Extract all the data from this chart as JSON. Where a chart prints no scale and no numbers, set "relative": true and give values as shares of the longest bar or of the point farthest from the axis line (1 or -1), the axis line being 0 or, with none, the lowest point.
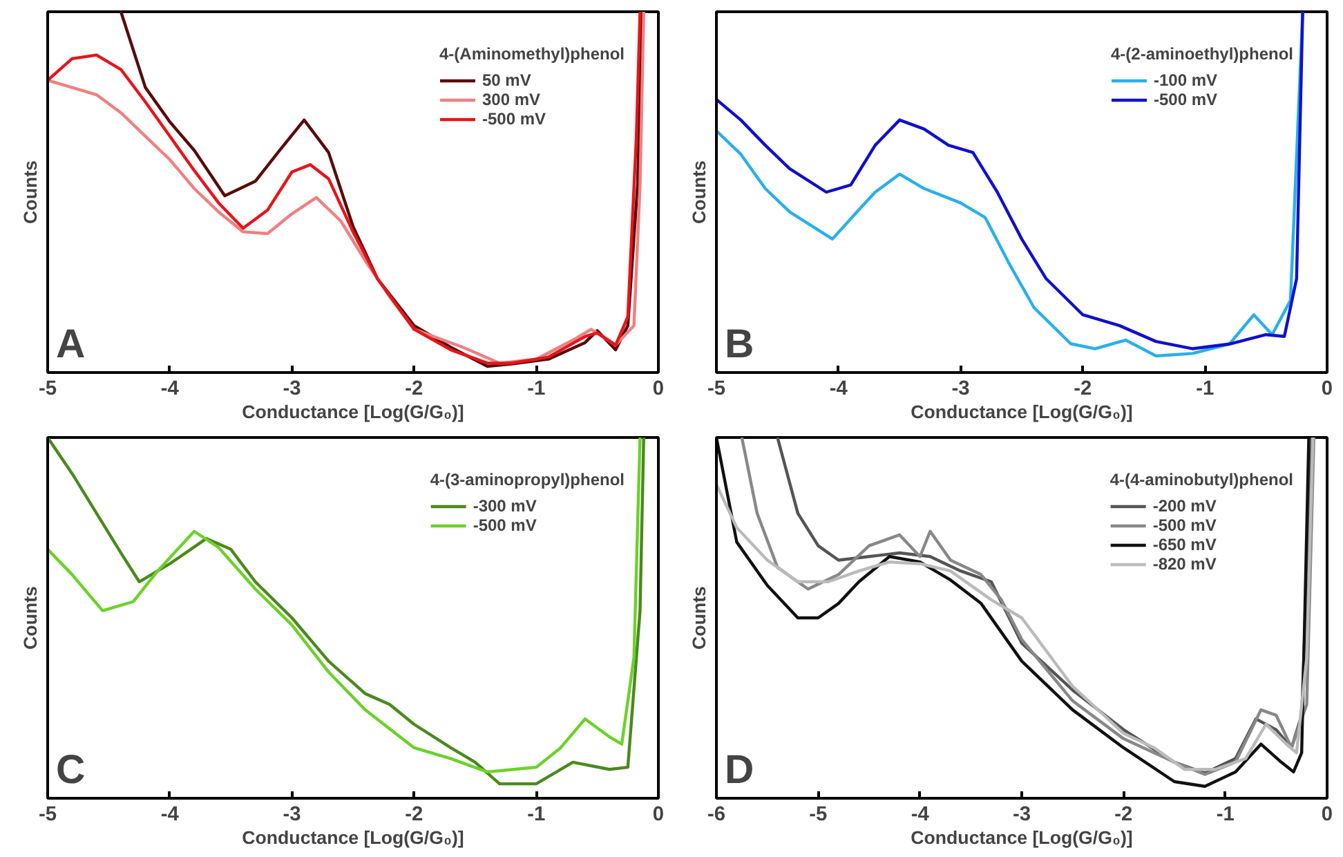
{
  "chart_data": [
    {
      "type": "line",
      "relative": true,
      "xlabel": "Conductance [Log(G/G₀)]",
      "ylabel": "Counts",
      "legend_title": "4-(Aminomethyl)phenol",
      "legend": "top right",
      "grid": false,
      "tick_labels": "x",
      "annotations": [
        "A"
      ],
      "xlim": [
        -5,
        0
      ],
      "xticks": [
        -5,
        -4,
        -3,
        -2,
        -1,
        0
      ],
      "series": [
        {
          "name": "50 mV",
          "color": "#5a0a0a",
          "x": [
            -4.4,
            -4.2,
            -4.0,
            -3.8,
            -3.55,
            -3.3,
            -3.1,
            -2.9,
            -2.7,
            -2.5,
            -2.3,
            -2.0,
            -1.7,
            -1.4,
            -1.2,
            -0.9,
            -0.6,
            -0.5,
            -0.35,
            -0.25,
            -0.17,
            -0.13
          ],
          "values": [
            1.0,
            0.79,
            0.695,
            0.616,
            0.49,
            0.53,
            0.616,
            0.7,
            0.61,
            0.405,
            0.26,
            0.13,
            0.07,
            0.017,
            0.024,
            0.037,
            0.083,
            0.116,
            0.063,
            0.13,
            0.52,
            1.0
          ]
        },
        {
          "name": "300 mV",
          "color": "#f08080",
          "x": [
            -5.0,
            -4.8,
            -4.6,
            -4.4,
            -4.2,
            -4.0,
            -3.8,
            -3.6,
            -3.4,
            -3.2,
            -3.0,
            -2.8,
            -2.6,
            -2.4,
            -2.2,
            -2.0,
            -1.6,
            -1.3,
            -1.0,
            -0.7,
            -0.55,
            -0.35,
            -0.2,
            -0.15,
            -0.12
          ],
          "values": [
            0.81,
            0.79,
            0.77,
            0.72,
            0.655,
            0.59,
            0.51,
            0.445,
            0.39,
            0.385,
            0.44,
            0.485,
            0.42,
            0.31,
            0.21,
            0.12,
            0.07,
            0.026,
            0.037,
            0.09,
            0.12,
            0.076,
            0.13,
            0.52,
            1.0
          ]
        },
        {
          "name": "-500 mV",
          "color": "#e8141a",
          "x": [
            -5.0,
            -4.8,
            -4.6,
            -4.4,
            -4.2,
            -4.0,
            -3.8,
            -3.6,
            -3.4,
            -3.2,
            -3.0,
            -2.85,
            -2.7,
            -2.5,
            -2.3,
            -2.0,
            -1.7,
            -1.4,
            -1.2,
            -0.9,
            -0.6,
            -0.5,
            -0.35,
            -0.25,
            -0.18,
            -0.15
          ],
          "values": [
            0.81,
            0.87,
            0.88,
            0.84,
            0.75,
            0.655,
            0.56,
            0.47,
            0.4,
            0.45,
            0.556,
            0.576,
            0.537,
            0.39,
            0.26,
            0.12,
            0.063,
            0.026,
            0.026,
            0.043,
            0.1,
            0.11,
            0.076,
            0.155,
            0.655,
            1.0
          ]
        }
      ]
    },
    {
      "type": "line",
      "relative": true,
      "xlabel": "Conductance [Log(G/G₀)]",
      "ylabel": "Counts",
      "legend_title": "4-(2-aminoethyl)phenol",
      "legend": "top right",
      "grid": false,
      "tick_labels": "x",
      "annotations": [
        "B"
      ],
      "xlim": [
        -5,
        0
      ],
      "xticks": [
        -5,
        -4,
        -3,
        -2,
        -1,
        0
      ],
      "series": [
        {
          "name": "-100 mV",
          "color": "#29b0ea",
          "x": [
            -5.0,
            -4.8,
            -4.6,
            -4.4,
            -4.05,
            -3.85,
            -3.7,
            -3.5,
            -3.3,
            -3.0,
            -2.8,
            -2.6,
            -2.4,
            -2.1,
            -1.9,
            -1.65,
            -1.4,
            -1.1,
            -0.8,
            -0.6,
            -0.45,
            -0.3,
            -0.2
          ],
          "values": [
            0.67,
            0.605,
            0.51,
            0.445,
            0.37,
            0.445,
            0.5,
            0.55,
            0.51,
            0.47,
            0.43,
            0.3,
            0.18,
            0.08,
            0.066,
            0.09,
            0.046,
            0.053,
            0.079,
            0.16,
            0.105,
            0.2,
            1.0
          ]
        },
        {
          "name": "-500 mV",
          "color": "#1010d0",
          "x": [
            -5.0,
            -4.8,
            -4.6,
            -4.4,
            -4.1,
            -3.9,
            -3.7,
            -3.5,
            -3.3,
            -3.1,
            -2.9,
            -2.7,
            -2.5,
            -2.3,
            -2.0,
            -1.7,
            -1.4,
            -1.1,
            -0.8,
            -0.5,
            -0.35,
            -0.25,
            -0.2
          ],
          "values": [
            0.757,
            0.7,
            0.63,
            0.565,
            0.5,
            0.52,
            0.63,
            0.7,
            0.675,
            0.63,
            0.61,
            0.5,
            0.37,
            0.26,
            0.16,
            0.13,
            0.086,
            0.066,
            0.079,
            0.105,
            0.1,
            0.26,
            1.0
          ]
        }
      ]
    },
    {
      "type": "line",
      "relative": true,
      "xlabel": "Conductance [Log(G/G₀)]",
      "ylabel": "Counts",
      "legend_title": "4-(3-aminopropyl)phenol",
      "legend": "top right",
      "grid": false,
      "tick_labels": "x",
      "annotations": [
        "C"
      ],
      "xlim": [
        -5,
        0
      ],
      "xticks": [
        -5,
        -4,
        -3,
        -2,
        -1,
        0
      ],
      "series": [
        {
          "name": "-300 mV",
          "color": "#4a8a1c",
          "x": [
            -5.0,
            -4.8,
            -4.6,
            -4.4,
            -4.25,
            -4.0,
            -3.7,
            -3.5,
            -3.3,
            -3.0,
            -2.7,
            -2.4,
            -2.2,
            -2.0,
            -1.7,
            -1.5,
            -1.3,
            -1.0,
            -0.7,
            -0.4,
            -0.25,
            -0.15,
            -0.12
          ],
          "values": [
            1.0,
            0.9,
            0.79,
            0.68,
            0.6,
            0.65,
            0.72,
            0.69,
            0.6,
            0.5,
            0.38,
            0.29,
            0.26,
            0.205,
            0.14,
            0.1,
            0.04,
            0.04,
            0.1,
            0.08,
            0.086,
            0.52,
            1.0
          ]
        },
        {
          "name": "-500 mV",
          "color": "#6cd12a",
          "x": [
            -5.0,
            -4.8,
            -4.55,
            -4.3,
            -4.1,
            -3.8,
            -3.6,
            -3.3,
            -3.0,
            -2.7,
            -2.4,
            -2.0,
            -1.7,
            -1.4,
            -1.0,
            -0.8,
            -0.6,
            -0.4,
            -0.3,
            -0.2,
            -0.15
          ],
          "values": [
            0.69,
            0.62,
            0.52,
            0.545,
            0.63,
            0.74,
            0.695,
            0.58,
            0.48,
            0.35,
            0.245,
            0.14,
            0.11,
            0.073,
            0.086,
            0.14,
            0.22,
            0.17,
            0.15,
            0.39,
            1.0
          ]
        }
      ]
    },
    {
      "type": "line",
      "relative": true,
      "xlabel": "Conductance [Log(G/G₀)]",
      "ylabel": "Counts",
      "legend_title": "4-(4-aminobutyl)phenol",
      "legend": "top right",
      "grid": false,
      "tick_labels": "x",
      "annotations": [
        "D"
      ],
      "xlim": [
        -6,
        0
      ],
      "xticks": [
        -6,
        -5,
        -4,
        -3,
        -2,
        -1,
        0
      ],
      "series": [
        {
          "name": "-200 mV",
          "color": "#555555",
          "x": [
            -5.4,
            -5.2,
            -5.0,
            -4.8,
            -4.5,
            -4.2,
            -3.9,
            -3.6,
            -3.3,
            -3.0,
            -2.5,
            -2.0,
            -1.5,
            -1.2,
            -0.9,
            -0.7,
            -0.5,
            -0.35,
            -0.25,
            -0.15
          ],
          "values": [
            1.0,
            0.79,
            0.7,
            0.66,
            0.67,
            0.68,
            0.67,
            0.63,
            0.6,
            0.43,
            0.3,
            0.19,
            0.1,
            0.07,
            0.11,
            0.22,
            0.19,
            0.14,
            0.23,
            1.0
          ]
        },
        {
          "name": "-500 mV",
          "color": "#888888",
          "x": [
            -5.75,
            -5.6,
            -5.4,
            -5.1,
            -4.8,
            -4.5,
            -4.2,
            -4.0,
            -3.9,
            -3.7,
            -3.4,
            -3.2,
            -3.0,
            -2.5,
            -2.0,
            -1.5,
            -1.2,
            -0.9,
            -0.65,
            -0.5,
            -0.35,
            -0.2,
            -0.13
          ],
          "values": [
            1.0,
            0.79,
            0.64,
            0.58,
            0.62,
            0.7,
            0.73,
            0.67,
            0.74,
            0.66,
            0.62,
            0.55,
            0.44,
            0.27,
            0.165,
            0.1,
            0.066,
            0.1,
            0.245,
            0.23,
            0.14,
            0.26,
            1.0
          ]
        },
        {
          "name": "-650 mV",
          "color": "#111111",
          "x": [
            -6.0,
            -5.8,
            -5.5,
            -5.2,
            -5.0,
            -4.8,
            -4.6,
            -4.3,
            -4.0,
            -3.7,
            -3.4,
            -3.2,
            -3.0,
            -2.5,
            -2.0,
            -1.5,
            -1.2,
            -0.9,
            -0.65,
            -0.45,
            -0.33,
            -0.25,
            -0.18
          ],
          "values": [
            1.0,
            0.71,
            0.59,
            0.5,
            0.5,
            0.54,
            0.6,
            0.67,
            0.655,
            0.605,
            0.54,
            0.46,
            0.38,
            0.245,
            0.14,
            0.046,
            0.033,
            0.073,
            0.15,
            0.1,
            0.073,
            0.126,
            1.0
          ]
        },
        {
          "name": "-820 mV",
          "color": "#bbbbbb",
          "x": [
            -6.0,
            -5.8,
            -5.5,
            -5.2,
            -4.9,
            -4.6,
            -4.3,
            -4.0,
            -3.7,
            -3.3,
            -3.0,
            -2.5,
            -2.0,
            -1.7,
            -1.4,
            -1.1,
            -0.8,
            -0.6,
            -0.4,
            -0.3,
            -0.2,
            -0.14
          ],
          "values": [
            0.87,
            0.75,
            0.66,
            0.6,
            0.6,
            0.63,
            0.655,
            0.65,
            0.63,
            0.55,
            0.5,
            0.31,
            0.18,
            0.14,
            0.08,
            0.08,
            0.11,
            0.205,
            0.15,
            0.126,
            0.39,
            1.0
          ]
        }
      ]
    }
  ]
}
